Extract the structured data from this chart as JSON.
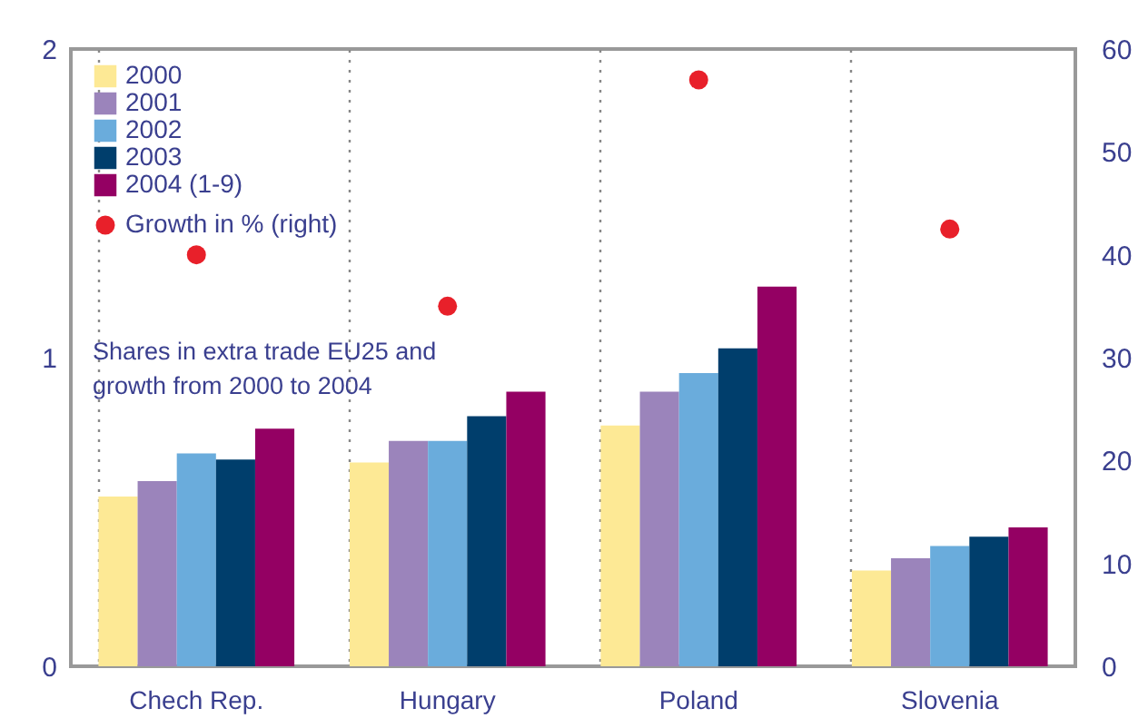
{
  "chart_data": {
    "type": "bar",
    "categories": [
      "Chech Rep.",
      "Hungary",
      "Poland",
      "Slovenia"
    ],
    "series": [
      {
        "name": "2000",
        "color": "#fde995",
        "values": [
          0.55,
          0.66,
          0.78,
          0.31
        ]
      },
      {
        "name": "2001",
        "color": "#9b84bb",
        "values": [
          0.6,
          0.73,
          0.89,
          0.35
        ]
      },
      {
        "name": "2002",
        "color": "#6aacdc",
        "values": [
          0.69,
          0.73,
          0.95,
          0.39
        ]
      },
      {
        "name": "2003",
        "color": "#003e6c",
        "values": [
          0.67,
          0.81,
          1.03,
          0.42
        ]
      },
      {
        "name": "2004 (1-9)",
        "color": "#940063",
        "values": [
          0.77,
          0.89,
          1.23,
          0.45
        ]
      },
      {
        "name": "Growth in % (right)",
        "type": "scatter",
        "axis": "y2",
        "color": "#e8202a",
        "marker": "circle",
        "values": [
          40,
          35,
          57,
          42.5
        ]
      }
    ],
    "ylim": [
      0,
      2
    ],
    "yticks": [
      0,
      1,
      2
    ],
    "y2lim": [
      0,
      60
    ],
    "y2ticks": [
      0,
      10,
      20,
      30,
      40,
      50,
      60
    ],
    "grid": "x",
    "legend": "top left",
    "annotations": [
      "Shares in extra trade EU25 and growth from 2000 to 2004"
    ]
  }
}
